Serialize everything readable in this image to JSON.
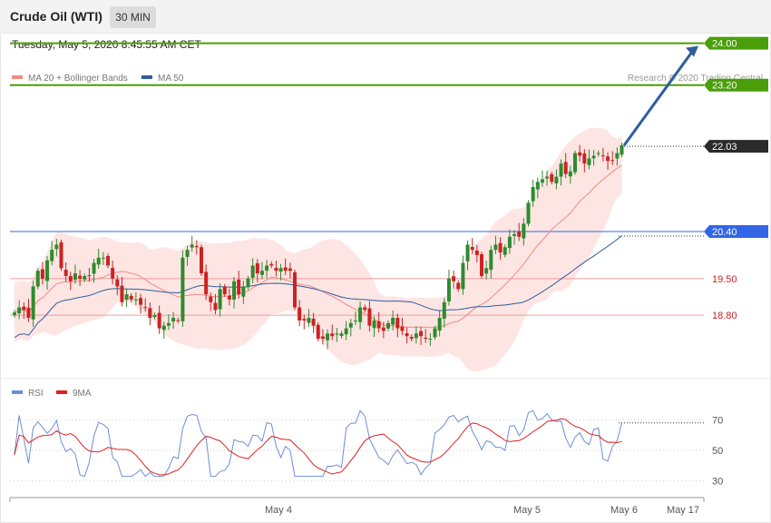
{
  "header": {
    "title": "Crude Oil (WTI)",
    "timeframe": "30 MIN",
    "datetime": "Tuesday, May 5, 2020 8:45:55 AM CET"
  },
  "legend": {
    "items": [
      {
        "label": "MA 20 + Bollinger Bands",
        "color": "#f28b82"
      },
      {
        "label": "MA 50",
        "color": "#2f5e9e"
      }
    ],
    "copyright": "Research © 2020 Trading Central"
  },
  "rsi_legend": {
    "items": [
      {
        "label": "RSI",
        "color": "#6b8fd6"
      },
      {
        "label": "9MA",
        "color": "#e02020"
      }
    ]
  },
  "x_axis": {
    "labels": [
      "May 4",
      "May 5",
      "May 6",
      "May 17"
    ]
  },
  "colors": {
    "up_candle": "#2e8b2e",
    "down_candle": "#cc2222",
    "target": "#4a9e0a",
    "current": "#2b2b2b",
    "support_blue": "#3366e6",
    "support_red": "#cc2222",
    "band_fill": "#fde0de",
    "arrow": "#2f5e9e"
  },
  "chart_data": [
    {
      "type": "candlestick",
      "title": "Crude Oil (WTI)",
      "price_levels": [
        {
          "value": 24.0,
          "label": "24.00",
          "kind": "target"
        },
        {
          "value": 23.2,
          "label": "23.20",
          "kind": "target"
        },
        {
          "value": 22.03,
          "label": "22.03",
          "kind": "current"
        },
        {
          "value": 20.4,
          "label": "20.40",
          "kind": "pivot"
        },
        {
          "value": 19.5,
          "label": "19.50",
          "kind": "support"
        },
        {
          "value": 18.8,
          "label": "18.80",
          "kind": "support"
        }
      ],
      "forecast_arrow": {
        "from": 22.03,
        "to": 24.0
      },
      "close": [
        18.85,
        18.95,
        18.9,
        18.75,
        19.35,
        19.65,
        19.5,
        19.85,
        20.05,
        20.15,
        19.7,
        19.55,
        19.45,
        19.6,
        19.5,
        19.55,
        19.55,
        19.8,
        19.9,
        19.9,
        19.75,
        19.5,
        19.35,
        19.05,
        19.2,
        19.1,
        19.1,
        19.0,
        18.95,
        18.75,
        18.8,
        18.55,
        18.6,
        18.65,
        18.75,
        18.7,
        19.9,
        20.05,
        20.15,
        20.1,
        19.6,
        19.2,
        19.05,
        18.9,
        19.3,
        19.2,
        19.1,
        19.45,
        19.2,
        19.35,
        19.5,
        19.75,
        19.6,
        19.65,
        19.75,
        19.75,
        19.65,
        19.7,
        19.65,
        19.65,
        18.95,
        18.7,
        18.7,
        18.75,
        18.6,
        18.35,
        18.35,
        18.45,
        18.4,
        18.45,
        18.45,
        18.55,
        18.65,
        18.7,
        18.95,
        18.9,
        18.6,
        18.7,
        18.55,
        18.5,
        18.65,
        18.75,
        18.55,
        18.5,
        18.4,
        18.35,
        18.45,
        18.4,
        18.35,
        18.35,
        18.55,
        18.75,
        19.05,
        19.5,
        19.45,
        19.3,
        19.8,
        20.15,
        20.05,
        19.95,
        19.55,
        19.7,
        20.05,
        20.15,
        20.0,
        20.1,
        20.3,
        20.35,
        20.3,
        20.55,
        20.95,
        21.25,
        21.35,
        21.4,
        21.45,
        21.35,
        21.45,
        21.7,
        21.5,
        21.55,
        21.9,
        21.85,
        21.7,
        21.8,
        21.85,
        21.9,
        21.85,
        21.75,
        21.75,
        21.9,
        22.05
      ]
    },
    {
      "type": "line",
      "series": [
        {
          "name": "RSI"
        },
        {
          "name": "9MA"
        }
      ],
      "ylim": [
        20,
        80
      ],
      "yticks": [
        70,
        50,
        30
      ],
      "current": 68
    }
  ]
}
